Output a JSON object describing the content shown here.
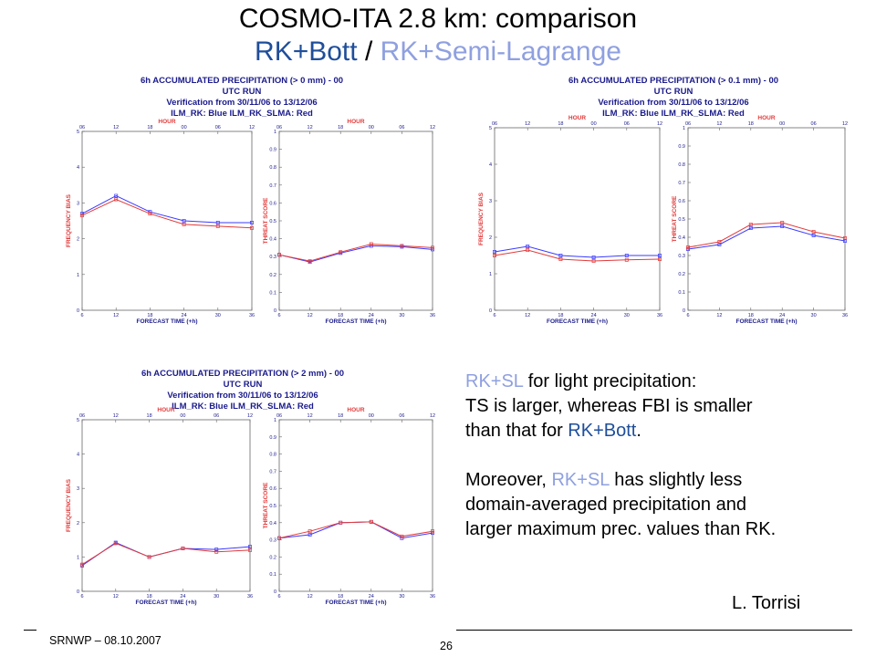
{
  "header": {
    "title": "COSMO-ITA 2.8 km: comparison",
    "subtitle_bott": "RK+Bott",
    "subtitle_sep": " / ",
    "subtitle_sl": "RK+Semi-Lagrange"
  },
  "captions": [
    {
      "line1": "6h ACCUMULATED PRECIPITATION (> 0 mm) - 00 UTC RUN",
      "line2": "Verification from 30/11/06 to 13/12/06",
      "line3": "ILM_RK: Blue  ILM_RK_SLMA: Red"
    },
    {
      "line1": "6h ACCUMULATED PRECIPITATION (> 0.1 mm) - 00 UTC RUN",
      "line2": "Verification from 30/11/06 to 13/12/06",
      "line3": "ILM_RK: Blue  ILM_RK_SLMA: Red"
    },
    {
      "line1": "6h ACCUMULATED PRECIPITATION (> 2 mm) - 00 UTC RUN",
      "line2": "Verification from 30/11/06 to 13/12/06",
      "line3": "ILM_RK: Blue  ILM_RK_SLMA: Red"
    }
  ],
  "colors": {
    "blue": "#3a3aff",
    "red": "#e23a3a",
    "axis_text": "#1a1a8c",
    "axis_label": "#e23a3a"
  },
  "chart_data": [
    {
      "id": "fb_0mm",
      "type": "line",
      "ylabel": "FREQUENCY BIAS",
      "xlabel": "FORECAST TIME (+h)",
      "toplabel": "HOUR",
      "x": [
        6,
        12,
        18,
        24,
        30,
        36
      ],
      "xticks": [
        "6",
        "12",
        "18",
        "24",
        "30",
        "36"
      ],
      "topticks": [
        "06",
        "12",
        "18",
        "00",
        "06",
        "12"
      ],
      "ylim": [
        0,
        5
      ],
      "yticks": [
        "0",
        "1",
        "2",
        "3",
        "4",
        "5"
      ],
      "series": [
        {
          "name": "ILM_RK",
          "color": "blue",
          "values": [
            2.7,
            3.2,
            2.75,
            2.5,
            2.45,
            2.45
          ]
        },
        {
          "name": "ILM_RK_SLMA",
          "color": "red",
          "values": [
            2.65,
            3.1,
            2.7,
            2.4,
            2.35,
            2.3
          ]
        }
      ]
    },
    {
      "id": "ts_0mm",
      "type": "line",
      "ylabel": "THREAT SCORE",
      "xlabel": "FORECAST TIME (+h)",
      "toplabel": "HOUR",
      "x": [
        6,
        12,
        18,
        24,
        30,
        36
      ],
      "xticks": [
        "6",
        "12",
        "18",
        "24",
        "30",
        "36"
      ],
      "topticks": [
        "06",
        "12",
        "18",
        "00",
        "06",
        "12"
      ],
      "ylim": [
        0,
        1
      ],
      "yticks": [
        "0",
        "0.1",
        "0.2",
        "0.3",
        "0.4",
        "0.5",
        "0.6",
        "0.7",
        "0.8",
        "0.9",
        "1"
      ],
      "series": [
        {
          "name": "ILM_RK",
          "color": "blue",
          "values": [
            0.31,
            0.27,
            0.32,
            0.36,
            0.355,
            0.34
          ]
        },
        {
          "name": "ILM_RK_SLMA",
          "color": "red",
          "values": [
            0.31,
            0.275,
            0.325,
            0.37,
            0.36,
            0.35
          ]
        }
      ]
    },
    {
      "id": "fb_01mm",
      "type": "line",
      "ylabel": "FREQUENCY BIAS",
      "xlabel": "FORECAST TIME (+h)",
      "toplabel": "HOUR",
      "x": [
        6,
        12,
        18,
        24,
        30,
        36
      ],
      "xticks": [
        "6",
        "12",
        "18",
        "24",
        "30",
        "36"
      ],
      "topticks": [
        "06",
        "12",
        "18",
        "00",
        "06",
        "12"
      ],
      "ylim": [
        0,
        5
      ],
      "yticks": [
        "0",
        "1",
        "2",
        "3",
        "4",
        "5"
      ],
      "series": [
        {
          "name": "ILM_RK",
          "color": "blue",
          "values": [
            1.6,
            1.75,
            1.5,
            1.45,
            1.5,
            1.5
          ]
        },
        {
          "name": "ILM_RK_SLMA",
          "color": "red",
          "values": [
            1.5,
            1.65,
            1.4,
            1.35,
            1.38,
            1.4
          ]
        }
      ]
    },
    {
      "id": "ts_01mm",
      "type": "line",
      "ylabel": "THREAT SCORE",
      "xlabel": "FORECAST TIME (+h)",
      "toplabel": "HOUR",
      "x": [
        6,
        12,
        18,
        24,
        30,
        36
      ],
      "xticks": [
        "6",
        "12",
        "18",
        "24",
        "30",
        "36"
      ],
      "topticks": [
        "06",
        "12",
        "18",
        "00",
        "06",
        "12"
      ],
      "ylim": [
        0,
        1
      ],
      "yticks": [
        "0",
        "0.1",
        "0.2",
        "0.3",
        "0.4",
        "0.5",
        "0.6",
        "0.7",
        "0.8",
        "0.9",
        "1"
      ],
      "series": [
        {
          "name": "ILM_RK",
          "color": "blue",
          "values": [
            0.335,
            0.36,
            0.45,
            0.46,
            0.41,
            0.38
          ]
        },
        {
          "name": "ILM_RK_SLMA",
          "color": "red",
          "values": [
            0.345,
            0.375,
            0.47,
            0.48,
            0.43,
            0.395
          ]
        }
      ]
    },
    {
      "id": "fb_2mm",
      "type": "line",
      "ylabel": "FREQUENCY BIAS",
      "xlabel": "FORECAST TIME (+h)",
      "toplabel": "HOUR",
      "x": [
        6,
        12,
        18,
        24,
        30,
        36
      ],
      "xticks": [
        "6",
        "12",
        "18",
        "24",
        "30",
        "36"
      ],
      "topticks": [
        "06",
        "12",
        "18",
        "00",
        "06",
        "12"
      ],
      "ylim": [
        0,
        5
      ],
      "yticks": [
        "0",
        "1",
        "2",
        "3",
        "4",
        "5"
      ],
      "series": [
        {
          "name": "ILM_RK",
          "color": "blue",
          "values": [
            0.75,
            1.42,
            1.0,
            1.25,
            1.22,
            1.3
          ]
        },
        {
          "name": "ILM_RK_SLMA",
          "color": "red",
          "values": [
            0.78,
            1.4,
            1.0,
            1.25,
            1.15,
            1.2
          ]
        }
      ]
    },
    {
      "id": "ts_2mm",
      "type": "line",
      "ylabel": "THREAT SCORE",
      "xlabel": "FORECAST TIME (+h)",
      "toplabel": "HOUR",
      "x": [
        6,
        12,
        18,
        24,
        30,
        36
      ],
      "xticks": [
        "6",
        "12",
        "18",
        "24",
        "30",
        "36"
      ],
      "topticks": [
        "06",
        "12",
        "18",
        "00",
        "06",
        "12"
      ],
      "ylim": [
        0,
        1
      ],
      "yticks": [
        "0",
        "0.1",
        "0.2",
        "0.3",
        "0.4",
        "0.5",
        "0.6",
        "0.7",
        "0.8",
        "0.9",
        "1"
      ],
      "series": [
        {
          "name": "ILM_RK",
          "color": "blue",
          "values": [
            0.31,
            0.33,
            0.4,
            0.405,
            0.31,
            0.34
          ]
        },
        {
          "name": "ILM_RK_SLMA",
          "color": "red",
          "values": [
            0.31,
            0.35,
            0.4,
            0.405,
            0.32,
            0.35
          ]
        }
      ]
    }
  ],
  "text": {
    "p1_a": "RK+SL",
    "p1_b": " for light precipitation:",
    "p2": "TS is larger, whereas FBI is smaller",
    "p3_a": "than that for ",
    "p3_b": "RK+Bott",
    "p3_c": ".",
    "p4_a": "Moreover, ",
    "p4_b": "RK+SL",
    "p4_c": " has slightly less",
    "p5": "domain-averaged precipitation and",
    "p6": "larger maximum prec. values than RK."
  },
  "author": "L. Torrisi",
  "footer": {
    "event": "SRNWP – 08.10.2007",
    "page": "26"
  }
}
